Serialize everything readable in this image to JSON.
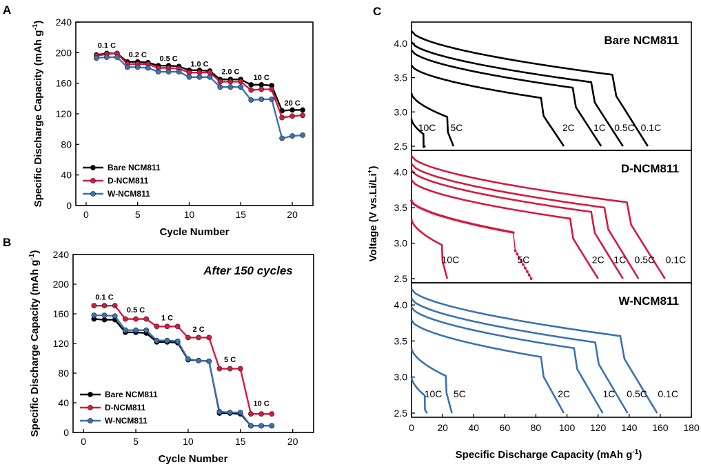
{
  "colors": {
    "bare": "#000000",
    "d": "#d6193f",
    "w": "#3a72b2"
  },
  "chart_data": [
    {
      "panel": "A",
      "type": "line",
      "title": "",
      "xlabel": "Cycle Number",
      "ylabel": "Specific Discharge Capacity (mAh g",
      "ylabel_unit_sup": "-1",
      "xlim": [
        -1,
        22
      ],
      "ylim": [
        0,
        240
      ],
      "xticks": [
        0,
        5,
        10,
        15,
        20
      ],
      "yticks": [
        0,
        40,
        80,
        120,
        160,
        200,
        240
      ],
      "x": [
        1,
        2,
        3,
        4,
        5,
        6,
        7,
        8,
        9,
        10,
        11,
        12,
        13,
        14,
        15,
        16,
        17,
        18,
        19,
        20,
        21
      ],
      "series": [
        {
          "name": "Bare NCM811",
          "color_key": "bare",
          "values": [
            197,
            199,
            199,
            188,
            188,
            187,
            183,
            183,
            182,
            177,
            177,
            176,
            165,
            165,
            165,
            158,
            158,
            157,
            124,
            125,
            125
          ]
        },
        {
          "name": "D-NCM811",
          "color_key": "d",
          "values": [
            196,
            198,
            199,
            185,
            185,
            185,
            180,
            180,
            179,
            174,
            174,
            174,
            162,
            162,
            162,
            151,
            152,
            152,
            115,
            117,
            118
          ]
        },
        {
          "name": "W-NCM811",
          "color_key": "w",
          "values": [
            193,
            194,
            194,
            181,
            181,
            180,
            175,
            175,
            175,
            168,
            168,
            168,
            155,
            155,
            155,
            138,
            139,
            139,
            88,
            91,
            92
          ]
        }
      ],
      "annotations": [
        {
          "text": "0.1 C",
          "x": 2,
          "y": 206
        },
        {
          "text": "0.2 C",
          "x": 5,
          "y": 194
        },
        {
          "text": "0.5 C",
          "x": 8,
          "y": 189
        },
        {
          "text": "1.0 C",
          "x": 11,
          "y": 182
        },
        {
          "text": "2.0 C",
          "x": 14,
          "y": 172
        },
        {
          "text": "10 C",
          "x": 17,
          "y": 164
        },
        {
          "text": "20 C",
          "x": 20,
          "y": 131
        }
      ],
      "legend": "lower-left"
    },
    {
      "panel": "B",
      "type": "line",
      "title": "After 150 cycles",
      "xlabel": "Cycle Number",
      "ylabel": "Specific Discharge Capacity (mAh g",
      "ylabel_unit_sup": "-1",
      "xlim": [
        -1,
        22
      ],
      "ylim": [
        0,
        240
      ],
      "xticks": [
        0,
        5,
        10,
        15,
        20
      ],
      "yticks": [
        0,
        40,
        80,
        120,
        160,
        200,
        240
      ],
      "x": [
        1,
        2,
        3,
        4,
        5,
        6,
        7,
        8,
        9,
        10,
        11,
        12,
        13,
        14,
        15,
        16,
        17,
        18
      ],
      "series": [
        {
          "name": "Bare NCM811",
          "color_key": "bare",
          "values": [
            153,
            152,
            152,
            135,
            135,
            134,
            122,
            122,
            121,
            98,
            97,
            96,
            26,
            26,
            25,
            9,
            9,
            9
          ]
        },
        {
          "name": "D-NCM811",
          "color_key": "d",
          "values": [
            171,
            171,
            171,
            153,
            153,
            153,
            143,
            143,
            143,
            128,
            128,
            128,
            86,
            86,
            86,
            25,
            25,
            25
          ]
        },
        {
          "name": "W-NCM811",
          "color_key": "w",
          "values": [
            158,
            158,
            157,
            138,
            138,
            138,
            124,
            124,
            123,
            99,
            97,
            96,
            28,
            27,
            27,
            9,
            9,
            9
          ]
        }
      ],
      "annotations": [
        {
          "text": "0.1 C",
          "x": 2,
          "y": 179
        },
        {
          "text": "0.5 C",
          "x": 5,
          "y": 162
        },
        {
          "text": "1 C",
          "x": 8,
          "y": 151
        },
        {
          "text": "2 C",
          "x": 11,
          "y": 136
        },
        {
          "text": "5 C",
          "x": 14,
          "y": 95
        },
        {
          "text": "10 C",
          "x": 17,
          "y": 36
        }
      ],
      "legend": "lower-left"
    },
    {
      "panel": "C",
      "type": "line",
      "xlabel": "Specific Discharge Capacity (mAh g",
      "xlabel_unit_sup": "-1",
      "ylabel": "Voltage (V vs.Li/Li",
      "ylabel_unit_sup": "+",
      "xlim": [
        0,
        180
      ],
      "xticks": [
        0,
        20,
        40,
        60,
        80,
        100,
        120,
        140,
        160,
        180
      ],
      "ylim": [
        2.5,
        4.25
      ],
      "yticks": [
        2.5,
        3.0,
        3.5,
        4.0
      ],
      "subplots": [
        {
          "title": "Bare NCM811",
          "color_key": "bare",
          "curves": [
            {
              "rate": "0.1C",
              "v0": 4.18,
              "cap": 152,
              "label_x": 154
            },
            {
              "rate": "0.5C",
              "v0": 4.02,
              "cap": 136,
              "label_x": 137
            },
            {
              "rate": "1C",
              "v0": 3.9,
              "cap": 122,
              "label_x": 121
            },
            {
              "rate": "2C",
              "v0": 3.68,
              "cap": 98,
              "label_x": 101
            },
            {
              "rate": "5C",
              "v0": 3.27,
              "cap": 27,
              "label_x": 29
            },
            {
              "rate": "10C",
              "v0": 2.9,
              "cap": 9,
              "label_x": 10
            }
          ]
        },
        {
          "title": "D-NCM811",
          "color_key": "d",
          "curves": [
            {
              "rate": "0.1C",
              "v0": 4.23,
              "cap": 163,
              "label_x": 170
            },
            {
              "rate": "0.5C",
              "v0": 4.12,
              "cap": 146,
              "label_x": 150
            },
            {
              "rate": "1C",
              "v0": 4.03,
              "cap": 136,
              "label_x": 134
            },
            {
              "rate": "2C",
              "v0": 3.89,
              "cap": 120,
              "label_x": 120
            },
            {
              "rate": "5C",
              "v0": 3.6,
              "cap": 77,
              "label_x": 72
            },
            {
              "rate": "10C",
              "v0": 3.34,
              "cap": 23,
              "label_x": 25
            }
          ]
        },
        {
          "title": "W-NCM811",
          "color_key": "w",
          "curves": [
            {
              "rate": "0.1C",
              "v0": 4.22,
              "cap": 158,
              "label_x": 165
            },
            {
              "rate": "0.5C",
              "v0": 4.09,
              "cap": 139,
              "label_x": 145
            },
            {
              "rate": "1C",
              "v0": 3.97,
              "cap": 123,
              "label_x": 127
            },
            {
              "rate": "2C",
              "v0": 3.79,
              "cap": 98,
              "label_x": 98
            },
            {
              "rate": "5C",
              "v0": 3.4,
              "cap": 26,
              "label_x": 31
            },
            {
              "rate": "10C",
              "v0": 3.0,
              "cap": 10,
              "label_x": 14
            }
          ]
        }
      ]
    }
  ],
  "panel_labels": {
    "a": "A",
    "b": "B",
    "c": "C"
  },
  "legend_labels": [
    "Bare NCM811",
    "D-NCM811",
    "W-NCM811"
  ],
  "panel_b_subtitle": "After 150 cycles"
}
